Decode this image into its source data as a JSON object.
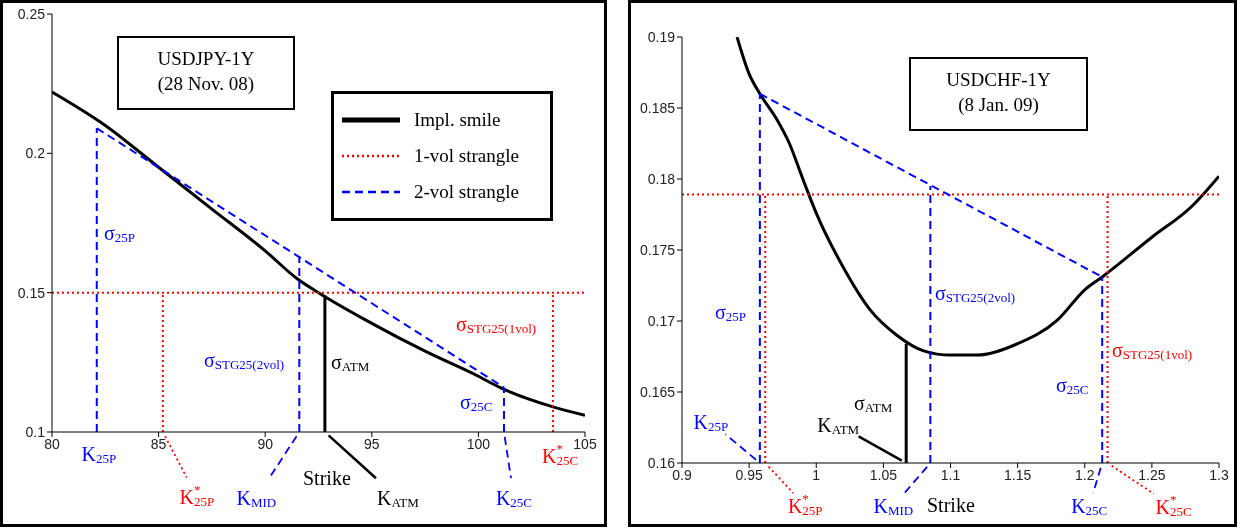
{
  "chart_data": [
    {
      "type": "line",
      "title": "USDJPY-1Y",
      "subtitle": "(28 Nov. 08)",
      "xlabel": "Strike",
      "xlim": [
        80,
        105
      ],
      "xticks": [
        80,
        85,
        90,
        95,
        100,
        105
      ],
      "ylim": [
        0.1,
        0.25
      ],
      "yticks": [
        0.1,
        0.15,
        0.2,
        0.25
      ],
      "legend": "top right",
      "series": [
        {
          "name": "Impl. smile",
          "color": "#000000",
          "line_style": "solid",
          "x": [
            80,
            82.5,
            85,
            87.5,
            90,
            91.5,
            92.5,
            95,
            97.5,
            100,
            101,
            103.5,
            105
          ],
          "values": [
            0.222,
            0.21,
            0.195,
            0.18,
            0.165,
            0.155,
            0.15,
            0.139,
            0.129,
            0.12,
            0.116,
            0.109,
            0.106
          ]
        },
        {
          "name": "1-vol strangle",
          "color": "#ff0000",
          "line_style": "dotted",
          "x": [
            80,
            105
          ],
          "values": [
            0.15,
            0.15
          ]
        },
        {
          "name": "2-vol strangle",
          "color": "#0000ff",
          "line_style": "dashed",
          "x": [
            82.1,
            101.2
          ],
          "values": [
            0.209,
            0.116
          ]
        },
        {
          "color": "#0000ff",
          "line_style": "dashed",
          "x": [
            82.1,
            82.1
          ],
          "values": [
            0.1,
            0.209
          ]
        },
        {
          "color": "#0000ff",
          "line_style": "dashed",
          "x": [
            91.6,
            91.6
          ],
          "values": [
            0.1,
            0.163
          ]
        },
        {
          "color": "#0000ff",
          "line_style": "dashed",
          "x": [
            101.2,
            101.2
          ],
          "values": [
            0.1,
            0.116
          ]
        },
        {
          "color": "#ff0000",
          "line_style": "dotted",
          "x": [
            85.2,
            85.2
          ],
          "values": [
            0.1,
            0.15
          ]
        },
        {
          "color": "#ff0000",
          "line_style": "dotted",
          "x": [
            103.5,
            103.5
          ],
          "values": [
            0.1,
            0.15
          ]
        },
        {
          "color": "#000000",
          "line_style": "solid",
          "x": [
            92.8,
            92.8
          ],
          "values": [
            0.1,
            0.149
          ]
        }
      ],
      "annotations": [
        "σ$_{25P}$",
        "σ$_{STG25(2vol)}$",
        "σ$_{ATM}$",
        "σ$_{STG25(1vol)}$",
        "σ$_{25C}$",
        {
          "text": "K$_{25P}$",
          "x": 82.1,
          "y": 0.1
        },
        {
          "text": "K$^{*}$$_{25P}$",
          "x": 85.2,
          "y": 0.1
        },
        {
          "text": "K$_{MID}$",
          "x": 91.6,
          "y": 0.1
        },
        {
          "text": "K$_{ATM}$",
          "x": 92.8,
          "y": 0.1
        },
        {
          "text": "K$_{25C}$",
          "x": 101.2,
          "y": 0.1
        },
        {
          "text": "K$^{*}$$_{25C}$",
          "x": 103.5,
          "y": 0.1
        }
      ]
    },
    {
      "type": "line",
      "title": "USDCHF-1Y",
      "subtitle": "(8 Jan. 09)",
      "xlabel": "Strike",
      "xlim": [
        0.9,
        1.3
      ],
      "xticks": [
        0.9,
        0.95,
        1,
        1.05,
        1.1,
        1.15,
        1.2,
        1.25,
        1.3
      ],
      "ylim": [
        0.16,
        0.19
      ],
      "yticks": [
        0.16,
        0.165,
        0.17,
        0.175,
        0.18,
        0.185,
        0.19
      ],
      "legend": false,
      "series": [
        {
          "color": "#000000",
          "line_style": "solid",
          "x": [
            0.941,
            0.95,
            0.958,
            0.97,
            0.98,
            0.99,
            1,
            1.02,
            1.04,
            1.06,
            1.08,
            1.1,
            1.12,
            1.15,
            1.18,
            1.2,
            1.213,
            1.25,
            1.28,
            1.3
          ],
          "values": [
            0.19,
            0.1874,
            0.186,
            0.1843,
            0.1825,
            0.18,
            0.1776,
            0.1738,
            0.1708,
            0.169,
            0.1679,
            0.1676,
            0.1676,
            0.1684,
            0.1701,
            0.1722,
            0.1731,
            0.1759,
            0.1781,
            0.1802
          ]
        },
        {
          "color": "#ff0000",
          "line_style": "dotted",
          "x": [
            0.9,
            1.3
          ],
          "values": [
            0.1789,
            0.1789
          ]
        },
        {
          "color": "#0000ff",
          "line_style": "dashed",
          "x": [
            0.958,
            1.213
          ],
          "values": [
            0.186,
            0.1731
          ]
        },
        {
          "color": "#0000ff",
          "line_style": "dashed",
          "x": [
            0.958,
            0.958
          ],
          "values": [
            0.16,
            0.186
          ]
        },
        {
          "color": "#0000ff",
          "line_style": "dashed",
          "x": [
            1.085,
            1.085
          ],
          "values": [
            0.16,
            0.1795
          ]
        },
        {
          "color": "#0000ff",
          "line_style": "dashed",
          "x": [
            1.213,
            1.213
          ],
          "values": [
            0.16,
            0.1731
          ]
        },
        {
          "color": "#ff0000",
          "line_style": "dotted",
          "x": [
            0.962,
            0.962
          ],
          "values": [
            0.16,
            0.1789
          ]
        },
        {
          "color": "#ff0000",
          "line_style": "dotted",
          "x": [
            1.217,
            1.217
          ],
          "values": [
            0.16,
            0.1789
          ]
        },
        {
          "color": "#000000",
          "line_style": "solid",
          "x": [
            1.067,
            1.067
          ],
          "values": [
            0.16,
            0.1684
          ]
        }
      ],
      "annotations": [
        "σ$_{25P}$",
        "σ$_{STG25(2vol)}$",
        "σ$_{ATM}$",
        "σ$_{STG25(1vol)}$",
        "σ$_{25C}$",
        {
          "text": "K$_{25P}$",
          "x": 0.958,
          "y": 0.16
        },
        {
          "text": "K$^{*}$$_{25P}$",
          "x": 0.962,
          "y": 0.16
        },
        {
          "text": "K$_{MID}$",
          "x": 1.085,
          "y": 0.16
        },
        {
          "text": "K$_{ATM}$",
          "x": 1.067,
          "y": 0.16
        },
        {
          "text": "K$_{25C}$",
          "x": 1.213,
          "y": 0.16
        },
        {
          "text": "K$^{*}$$_{25C}$",
          "x": 1.217,
          "y": 0.16
        }
      ]
    }
  ]
}
